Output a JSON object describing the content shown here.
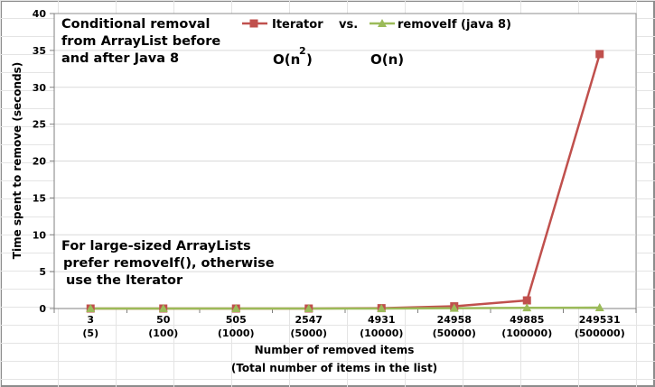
{
  "chart_data": {
    "type": "line",
    "title_lines": [
      "Conditional removal",
      "from ArrayList before",
      "and after Java 8"
    ],
    "note_lines": [
      "For large-sized ArrayLists",
      "prefer removeIf(), otherwise",
      "use the Iterator"
    ],
    "ylabel": "Time spent to remove (seconds)",
    "xlabel_lines": [
      "Number of removed items",
      "(Total number of items in the list)"
    ],
    "ylim": [
      0,
      40
    ],
    "yticks": [
      "0",
      "5",
      "10",
      "15",
      "20",
      "25",
      "30",
      "35",
      "40"
    ],
    "categories": [
      [
        "3",
        "(5)"
      ],
      [
        "50",
        "(100)"
      ],
      [
        "505",
        "(1000)"
      ],
      [
        "2547",
        "(5000)"
      ],
      [
        "4931",
        "(10000)"
      ],
      [
        "24958",
        "(50000)"
      ],
      [
        "49885",
        "(100000)"
      ],
      [
        "249531",
        "(500000)"
      ]
    ],
    "series": [
      {
        "name": "Iterator",
        "color": "#c0504d",
        "marker": "square",
        "values": [
          0.0,
          0.0,
          0.0,
          0.0,
          0.05,
          0.3,
          1.1,
          34.5
        ]
      },
      {
        "name": "removeIf (java 8)",
        "color": "#9bbb59",
        "marker": "triangle",
        "values": [
          0.0,
          0.0,
          0.0,
          0.0,
          0.0,
          0.05,
          0.1,
          0.12
        ]
      }
    ],
    "legend": {
      "vs_text": "vs.",
      "position": "top-center"
    },
    "complexity": {
      "iterator_base": "O(n",
      "iterator_exp": "2",
      "iterator_close": ")",
      "removeif": "O(n)"
    },
    "grid": true
  }
}
